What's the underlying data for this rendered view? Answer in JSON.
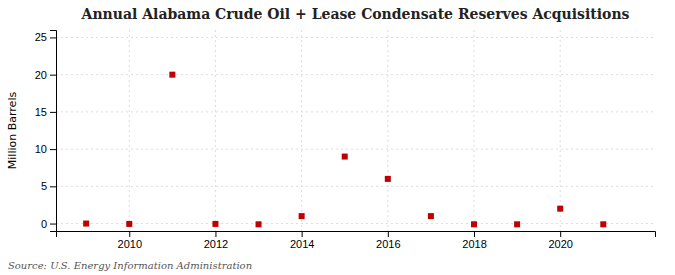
{
  "chart_data": {
    "type": "scatter",
    "title": "Annual Alabama Crude Oil + Lease Condensate Reserves Acquisitions",
    "ylabel": "Million Barrels",
    "annotations": [
      "Source: U.S. Energy Information Administration"
    ],
    "x": [
      2009,
      2010,
      2011,
      2012,
      2013,
      2014,
      2015,
      2016,
      2017,
      2018,
      2019,
      2020,
      2021
    ],
    "values": [
      0.0,
      -0.05,
      20.0,
      -0.05,
      -0.1,
      1.0,
      9.0,
      6.0,
      1.0,
      -0.1,
      -0.1,
      2.0,
      -0.1
    ],
    "color": "#c00000",
    "marker": "square",
    "xlim": [
      2008.3,
      2022.2
    ],
    "ylim": [
      -1,
      26
    ],
    "xticks": [
      2010,
      2012,
      2014,
      2016,
      2018,
      2020
    ],
    "yticks": [
      0,
      5,
      10,
      15,
      20,
      25
    ],
    "grid": true
  }
}
